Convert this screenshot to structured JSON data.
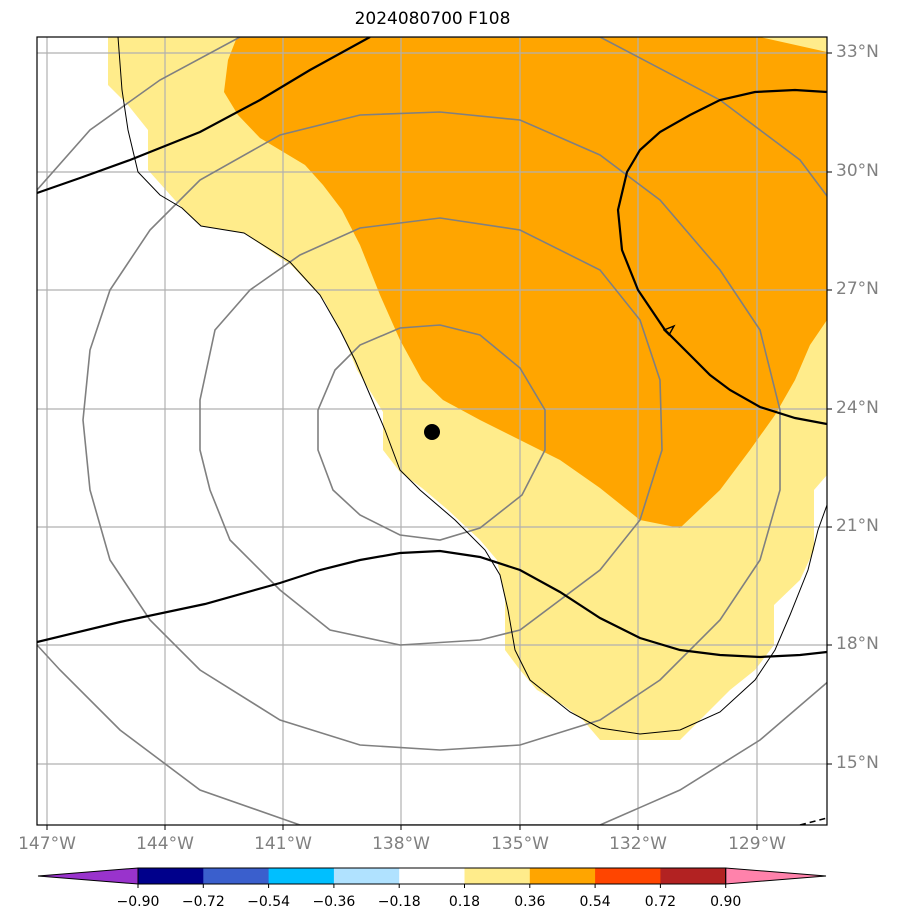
{
  "title": "2024080700 F108",
  "colors": {
    "gridline": "#b0b0b0",
    "contour_grey": "#808080",
    "contour_black": "#000000",
    "label_grey": "#808080"
  },
  "lat_labels": [
    "33°N",
    "30°N",
    "27°N",
    "24°N",
    "21°N",
    "18°N",
    "15°N"
  ],
  "lon_labels": [
    "147°W",
    "144°W",
    "141°W",
    "138°W",
    "135°W",
    "132°W",
    "129°W"
  ],
  "storm_center": {
    "lon": "137.2°W",
    "lat": "23.4°N"
  },
  "colorbar": {
    "labels": [
      "−0.90",
      "−0.72",
      "−0.54",
      "−0.36",
      "−0.18",
      "0.18",
      "0.36",
      "0.54",
      "0.72",
      "0.90"
    ],
    "colors": [
      "#9933cc",
      "#00008b",
      "#3a5fcd",
      "#00bfff",
      "#b0e2ff",
      "#ffffff",
      "#ffec8b",
      "#ffa500",
      "#ff4500",
      "#b22222",
      "#ff82ab"
    ]
  }
}
